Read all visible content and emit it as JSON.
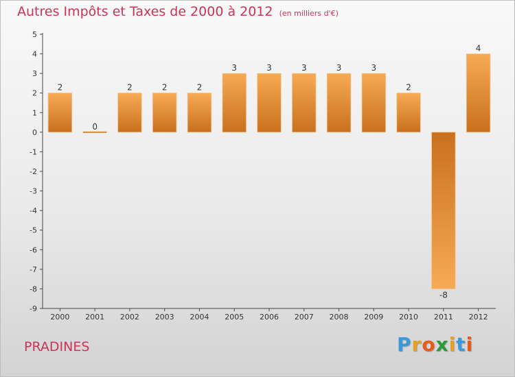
{
  "title": "Autres Impôts et Taxes de 2000 à 2012",
  "unit_note": "(en milliers d'€)",
  "commune": "PRADINES",
  "logo": {
    "letters": [
      "P",
      "r",
      "o",
      "x",
      "i",
      "t",
      "i"
    ],
    "colors": [
      "#3a9ad9",
      "#e8a020",
      "#e85a1a",
      "#2a9a3a",
      "#e8a020",
      "#3a9ad9",
      "#e85a1a"
    ]
  },
  "colors": {
    "title": "#cc3355",
    "bar_light": "#f7aa55",
    "bar_dark": "#c8701e"
  },
  "chart_data": {
    "type": "bar",
    "categories": [
      "2000",
      "2001",
      "2002",
      "2003",
      "2004",
      "2005",
      "2006",
      "2007",
      "2008",
      "2009",
      "2010",
      "2011",
      "2012"
    ],
    "values": [
      2,
      0,
      2,
      2,
      2,
      3,
      3,
      3,
      3,
      3,
      2,
      -8,
      4
    ],
    "data_labels": [
      "2",
      "0",
      "2",
      "2",
      "2",
      "3",
      "3",
      "3",
      "3",
      "3",
      "2",
      "-8",
      "4"
    ],
    "ylim": [
      -9,
      5
    ],
    "yticks": [
      "-9",
      "-8",
      "-7",
      "-6",
      "-5",
      "-4",
      "-3",
      "-2",
      "-1",
      "0",
      "1",
      "2",
      "3",
      "4",
      "5"
    ],
    "grid": false,
    "legend": "none"
  }
}
